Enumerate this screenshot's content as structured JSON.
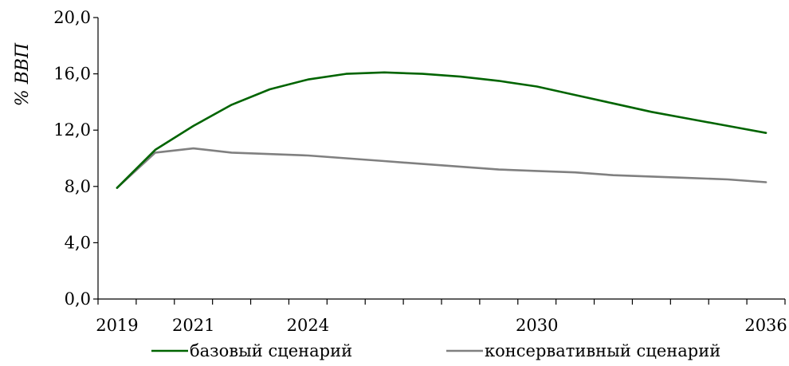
{
  "chart_data": {
    "type": "line",
    "title": "",
    "xlabel": "",
    "ylabel": "% ВВП",
    "ylim": [
      0,
      20
    ],
    "yticks": [
      0,
      4,
      8,
      12,
      16,
      20
    ],
    "ytick_labels": [
      "0,0",
      "4,0",
      "8,0",
      "12,0",
      "16,0",
      "20,0"
    ],
    "xlim": [
      2018.5,
      2036.5
    ],
    "x_tick_marks": [
      2018.5,
      2019.5,
      2020.5,
      2021.5,
      2022.5,
      2023.5,
      2024.5,
      2025.5,
      2026.5,
      2027.5,
      2028.5,
      2029.5,
      2030.5,
      2031.5,
      2032.5,
      2033.5,
      2034.5,
      2035.5,
      2036.5
    ],
    "x_labels": [
      {
        "x": 2019,
        "label": "2019"
      },
      {
        "x": 2021,
        "label": "2021"
      },
      {
        "x": 2024,
        "label": "2024"
      },
      {
        "x": 2030,
        "label": "2030"
      },
      {
        "x": 2036,
        "label": "2036"
      }
    ],
    "x": [
      2019,
      2020,
      2021,
      2022,
      2023,
      2024,
      2025,
      2026,
      2027,
      2028,
      2029,
      2030,
      2031,
      2032,
      2033,
      2034,
      2035,
      2036
    ],
    "series": [
      {
        "name": "базовый сценарий",
        "color": "#006400",
        "values": [
          7.9,
          10.6,
          12.3,
          13.8,
          14.9,
          15.6,
          16.0,
          16.1,
          16.0,
          15.8,
          15.5,
          15.1,
          14.5,
          13.9,
          13.3,
          12.8,
          12.3,
          11.8
        ]
      },
      {
        "name": "консервативный сценарий",
        "color": "#808080",
        "values": [
          7.9,
          10.4,
          10.7,
          10.4,
          10.3,
          10.2,
          10.0,
          9.8,
          9.6,
          9.4,
          9.2,
          9.1,
          9.0,
          8.8,
          8.7,
          8.6,
          8.5,
          8.3
        ]
      }
    ],
    "legend_position": "bottom",
    "grid": false
  }
}
